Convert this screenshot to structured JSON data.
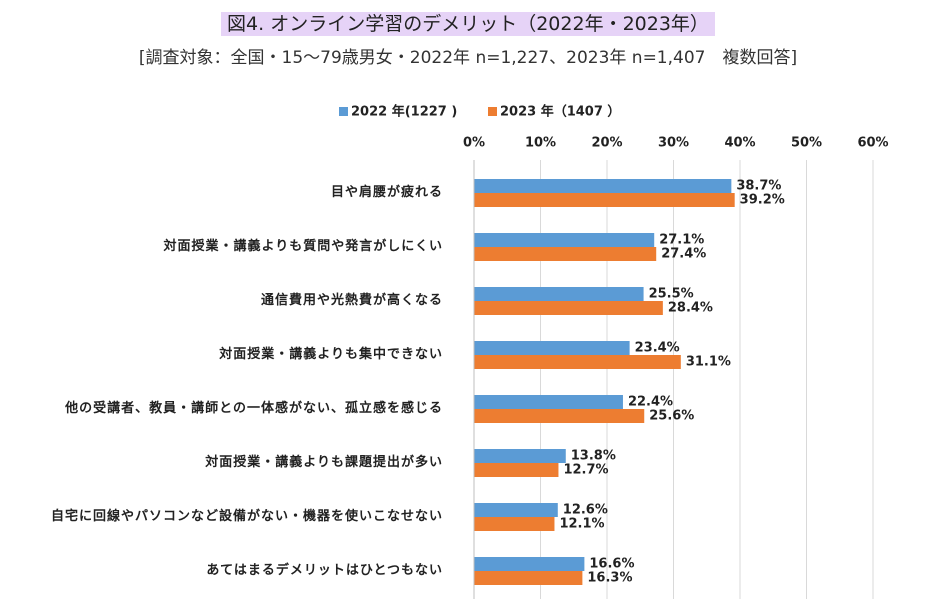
{
  "chart_data": {
    "type": "hbar",
    "title": "図4. オンライン学習のデメリット（2022年・2023年）",
    "subtitle": "[調査対象：全国・15～79歳男女・2022年 n=1,227、2023年 n=1,407　複数回答]",
    "categories": [
      "目や肩腰が疲れる",
      "対面授業・講義よりも質問や発言がしにくい",
      "通信費用や光熱費が高くなる",
      "対面授業・講義よりも集中できない",
      "他の受講者、教員・講師との一体感がない、孤立感を感じる",
      "対面授業・講義よりも課題提出が多い",
      "自宅に回線やパソコンなど設備がない・機器を使いこなせない",
      "あてはまるデメリットはひとつもない"
    ],
    "series": [
      {
        "name": "2022 年(1227 )",
        "color": "#5b9bd5",
        "values": [
          38.7,
          27.1,
          25.5,
          23.4,
          22.4,
          13.8,
          12.6,
          16.6
        ],
        "value_labels": [
          "38.7%",
          "27.1%",
          "25.5%",
          "23.4%",
          "22.4%",
          "13.8%",
          "12.6%",
          "16.6%"
        ]
      },
      {
        "name": "2023 年（1407 ）",
        "color": "#ed7d31",
        "values": [
          39.2,
          27.4,
          28.4,
          31.1,
          25.6,
          12.7,
          12.1,
          16.3
        ],
        "value_labels": [
          "39.2%",
          "27.4%",
          "28.4%",
          "31.1%",
          "25.6%",
          "12.7%",
          "12.1%",
          "16.3%"
        ]
      }
    ],
    "xlim": [
      0,
      60
    ],
    "xticks": [
      {
        "value": 0,
        "label": "0%"
      },
      {
        "value": 10,
        "label": "10%"
      },
      {
        "value": 20,
        "label": "20%"
      },
      {
        "value": 30,
        "label": "30%"
      },
      {
        "value": 40,
        "label": "40%"
      },
      {
        "value": 50,
        "label": "50%"
      },
      {
        "value": 60,
        "label": "60%"
      }
    ],
    "grid": true
  }
}
